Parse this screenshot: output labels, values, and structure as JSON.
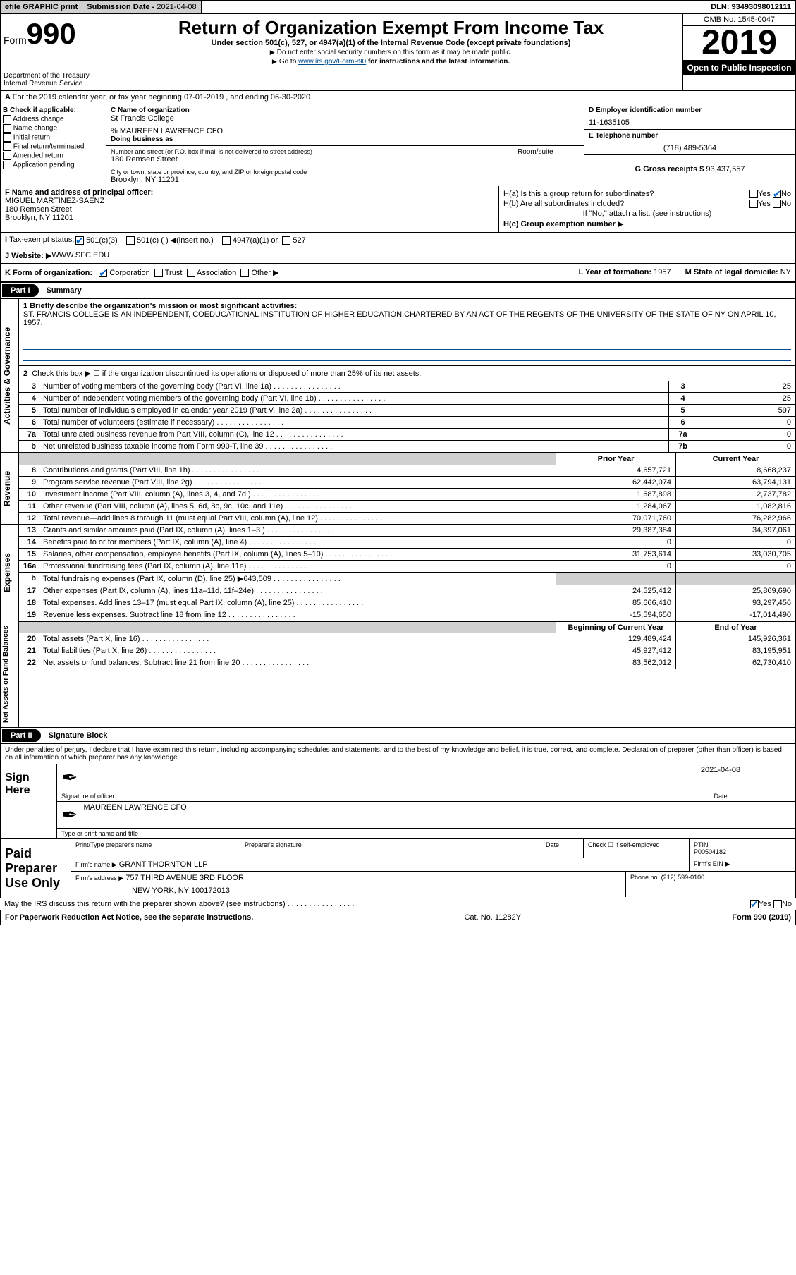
{
  "topbar": {
    "efile": "efile GRAPHIC print",
    "sub_label": "Submission Date - ",
    "sub_date": "2021-04-08",
    "dln": "DLN: 93493098012111"
  },
  "header": {
    "form_word": "Form",
    "form_num": "990",
    "dept1": "Department of the Treasury",
    "dept2": "Internal Revenue Service",
    "title": "Return of Organization Exempt From Income Tax",
    "subtitle": "Under section 501(c), 527, or 4947(a)(1) of the Internal Revenue Code (except private foundations)",
    "note1": "Do not enter social security numbers on this form as it may be made public.",
    "note2_pre": "Go to ",
    "note2_link": "www.irs.gov/Form990",
    "note2_post": " for instructions and the latest information.",
    "omb": "OMB No. 1545-0047",
    "year": "2019",
    "open_public": "Open to Public Inspection"
  },
  "line_a": "For the 2019 calendar year, or tax year beginning 07-01-2019    , and ending 06-30-2020",
  "section_b": {
    "label": "B Check if applicable:",
    "opts": [
      "Address change",
      "Name change",
      "Initial return",
      "Final return/terminated",
      "Amended return",
      "Application pending"
    ]
  },
  "section_c": {
    "name_label": "C Name of organization",
    "name": "St Francis College",
    "care_of": "% MAUREEN LAWRENCE CFO",
    "dba_label": "Doing business as",
    "addr_label": "Number and street (or P.O. box if mail is not delivered to street address)",
    "addr": "180 Remsen Street",
    "suite_label": "Room/suite",
    "city_label": "City or town, state or province, country, and ZIP or foreign postal code",
    "city": "Brooklyn, NY  11201"
  },
  "section_d": {
    "ein_label": "D Employer identification number",
    "ein": "11-1635105",
    "phone_label": "E Telephone number",
    "phone": "(718) 489-5364",
    "gross_label": "G Gross receipts $",
    "gross": "93,437,557"
  },
  "section_f": {
    "label": "F  Name and address of principal officer:",
    "name": "MIGUEL MARTINEZ-SAENZ",
    "addr1": "180 Remsen Street",
    "addr2": "Brooklyn, NY  11201"
  },
  "section_h": {
    "ha_label": "H(a)  Is this a group return for subordinates?",
    "hb_label": "H(b)  Are all subordinates included?",
    "hb_note": "If \"No,\" attach a list. (see instructions)",
    "hc_label": "H(c)  Group exemption number",
    "yes": "Yes",
    "no": "No"
  },
  "tax_status": {
    "label": "Tax-exempt status:",
    "opt1": "501(c)(3)",
    "opt2": "501(c) (  )",
    "opt2_note": "(insert no.)",
    "opt3": "4947(a)(1) or",
    "opt4": "527"
  },
  "website": {
    "label": "J Website:",
    "value": "WWW.SFC.EDU"
  },
  "form_org": {
    "label": "K Form of organization:",
    "opts": [
      "Corporation",
      "Trust",
      "Association",
      "Other"
    ],
    "l_label": "L Year of formation:",
    "l_val": "1957",
    "m_label": "M State of legal domicile:",
    "m_val": "NY"
  },
  "part1": {
    "hdr": "Part I",
    "title": "Summary",
    "side_ag": "Activities & Governance",
    "side_rev": "Revenue",
    "side_exp": "Expenses",
    "side_net": "Net Assets or Fund Balances",
    "l1_label": "1 Briefly describe the organization's mission or most significant activities:",
    "l1_text": "ST. FRANCIS COLLEGE IS AN INDEPENDENT, COEDUCATIONAL INSTITUTION OF HIGHER EDUCATION CHARTERED BY AN ACT OF THE REGENTS OF THE UNIVERSITY OF THE STATE OF NY ON APRIL 10, 1957.",
    "l2_label": "Check this box ▶ ☐  if the organization discontinued its operations or disposed of more than 25% of its net assets.",
    "prior_hdr": "Prior Year",
    "current_hdr": "Current Year",
    "begin_hdr": "Beginning of Current Year",
    "end_hdr": "End of Year"
  },
  "governance_rows": [
    {
      "n": "3",
      "desc": "Number of voting members of the governing body (Part VI, line 1a)",
      "box": "3",
      "val": "25"
    },
    {
      "n": "4",
      "desc": "Number of independent voting members of the governing body (Part VI, line 1b)",
      "box": "4",
      "val": "25"
    },
    {
      "n": "5",
      "desc": "Total number of individuals employed in calendar year 2019 (Part V, line 2a)",
      "box": "5",
      "val": "597"
    },
    {
      "n": "6",
      "desc": "Total number of volunteers (estimate if necessary)",
      "box": "6",
      "val": "0"
    },
    {
      "n": "7a",
      "desc": "Total unrelated business revenue from Part VIII, column (C), line 12",
      "box": "7a",
      "val": "0"
    },
    {
      "n": "b",
      "desc": "Net unrelated business taxable income from Form 990-T, line 39",
      "box": "7b",
      "val": "0"
    }
  ],
  "revenue_rows": [
    {
      "n": "8",
      "desc": "Contributions and grants (Part VIII, line 1h)",
      "prior": "4,657,721",
      "cur": "8,668,237"
    },
    {
      "n": "9",
      "desc": "Program service revenue (Part VIII, line 2g)",
      "prior": "62,442,074",
      "cur": "63,794,131"
    },
    {
      "n": "10",
      "desc": "Investment income (Part VIII, column (A), lines 3, 4, and 7d )",
      "prior": "1,687,898",
      "cur": "2,737,782"
    },
    {
      "n": "11",
      "desc": "Other revenue (Part VIII, column (A), lines 5, 6d, 8c, 9c, 10c, and 11e)",
      "prior": "1,284,067",
      "cur": "1,082,816"
    },
    {
      "n": "12",
      "desc": "Total revenue—add lines 8 through 11 (must equal Part VIII, column (A), line 12)",
      "prior": "70,071,760",
      "cur": "76,282,966"
    }
  ],
  "expense_rows": [
    {
      "n": "13",
      "desc": "Grants and similar amounts paid (Part IX, column (A), lines 1–3 )",
      "prior": "29,387,384",
      "cur": "34,397,061"
    },
    {
      "n": "14",
      "desc": "Benefits paid to or for members (Part IX, column (A), line 4)",
      "prior": "0",
      "cur": "0"
    },
    {
      "n": "15",
      "desc": "Salaries, other compensation, employee benefits (Part IX, column (A), lines 5–10)",
      "prior": "31,753,614",
      "cur": "33,030,705"
    },
    {
      "n": "16a",
      "desc": "Professional fundraising fees (Part IX, column (A), line 11e)",
      "prior": "0",
      "cur": "0"
    },
    {
      "n": "b",
      "desc": "Total fundraising expenses (Part IX, column (D), line 25) ▶643,509",
      "prior": "",
      "cur": "",
      "shaded": true
    },
    {
      "n": "17",
      "desc": "Other expenses (Part IX, column (A), lines 11a–11d, 11f–24e)",
      "prior": "24,525,412",
      "cur": "25,869,690"
    },
    {
      "n": "18",
      "desc": "Total expenses. Add lines 13–17 (must equal Part IX, column (A), line 25)",
      "prior": "85,666,410",
      "cur": "93,297,456"
    },
    {
      "n": "19",
      "desc": "Revenue less expenses. Subtract line 18 from line 12",
      "prior": "-15,594,650",
      "cur": "-17,014,490"
    }
  ],
  "netassets_rows": [
    {
      "n": "20",
      "desc": "Total assets (Part X, line 16)",
      "prior": "129,489,424",
      "cur": "145,926,361"
    },
    {
      "n": "21",
      "desc": "Total liabilities (Part X, line 26)",
      "prior": "45,927,412",
      "cur": "83,195,951"
    },
    {
      "n": "22",
      "desc": "Net assets or fund balances. Subtract line 21 from line 20",
      "prior": "83,562,012",
      "cur": "62,730,410"
    }
  ],
  "part2": {
    "hdr": "Part II",
    "title": "Signature Block",
    "perjury": "Under penalties of perjury, I declare that I have examined this return, including accompanying schedules and statements, and to the best of my knowledge and belief, it is true, correct, and complete. Declaration of preparer (other than officer) is based on all information of which preparer has any knowledge.",
    "sign_here": "Sign Here",
    "sig_officer": "Signature of officer",
    "sig_date": "2021-04-08",
    "date_label": "Date",
    "officer_name": "MAUREEN LAWRENCE  CFO",
    "type_label": "Type or print name and title",
    "paid_prep": "Paid Preparer Use Only",
    "prep_name_label": "Print/Type preparer's name",
    "prep_sig_label": "Preparer's signature",
    "prep_date_label": "Date",
    "check_self": "Check ☐ if self-employed",
    "ptin_label": "PTIN",
    "ptin": "P00504182",
    "firm_name_label": "Firm's name   ▶",
    "firm_name": "GRANT THORNTON LLP",
    "firm_ein_label": "Firm's EIN ▶",
    "firm_addr_label": "Firm's address ▶",
    "firm_addr1": "757 THIRD AVENUE 3RD FLOOR",
    "firm_addr2": "NEW YORK, NY  100172013",
    "firm_phone_label": "Phone no.",
    "firm_phone": "(212) 599-0100",
    "irs_discuss": "May the IRS discuss this return with the preparer shown above? (see instructions)"
  },
  "footer": {
    "paperwork": "For Paperwork Reduction Act Notice, see the separate instructions.",
    "cat": "Cat. No. 11282Y",
    "form": "Form 990 (2019)"
  }
}
